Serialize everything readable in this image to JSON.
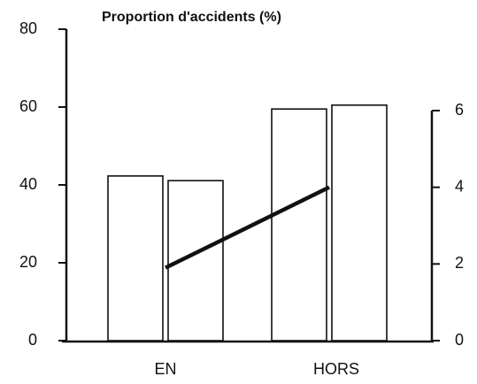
{
  "chart_data": {
    "type": "bar",
    "title": "Proportion d'accidents (%)",
    "categories": [
      "EN",
      "HORS"
    ],
    "series": [
      {
        "type": "bar",
        "color": "#ffffff",
        "values": [
          42.3,
          59.5
        ]
      },
      {
        "type": "bar",
        "color": "#ffffff",
        "values": [
          41.1,
          60.5
        ]
      },
      {
        "type": "line",
        "color": "#111111",
        "axis": "y2",
        "values": [
          1.9,
          4.0
        ]
      }
    ],
    "ylim": [
      0,
      80
    ],
    "yticks": [
      0,
      20,
      40,
      60,
      80
    ],
    "y2lim": [
      0,
      6
    ],
    "y2ticks": [
      0,
      2,
      4,
      6
    ]
  }
}
